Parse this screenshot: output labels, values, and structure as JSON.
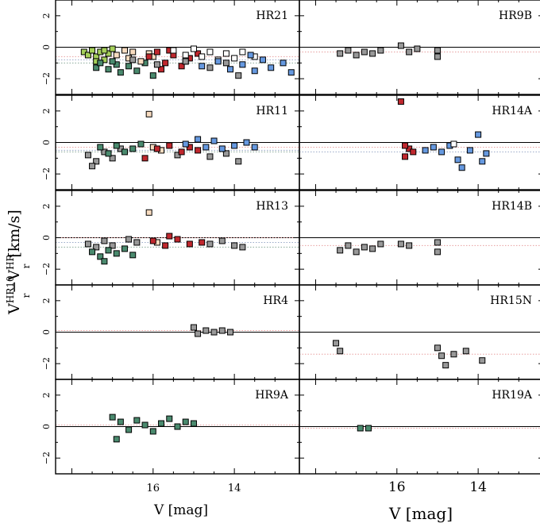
{
  "figure": {
    "ylabel": "V_r^HR10 − V_r^HR",
    "ylabel_main": "V",
    "ylabel_sup": "HR10",
    "ylabel_sub": "r",
    "ylabel_minus": "−V",
    "ylabel_sup2": "HR",
    "ylabel_sub2": "r",
    "ylabel_unit": "[km/s]",
    "xlabel": "V [mag]",
    "x_ticks": [
      "16",
      "14"
    ],
    "y_ticks": [
      "2",
      "0",
      "−2"
    ]
  },
  "chart_data": [
    {
      "type": "scatter",
      "panel": "HR21",
      "xlim": [
        18.4,
        12.4
      ],
      "ylim": [
        -3,
        3
      ],
      "ref_lines": [
        -0.6,
        -0.8,
        -1.0
      ],
      "series": [
        {
          "color": "#a6d05a",
          "points": [
            [
              17.7,
              -0.3
            ],
            [
              17.6,
              -0.5
            ],
            [
              17.5,
              -0.2
            ],
            [
              17.4,
              -0.6
            ],
            [
              17.3,
              -0.3
            ],
            [
              17.2,
              -0.8
            ],
            [
              17.1,
              -0.4
            ],
            [
              17.0,
              -0.1
            ],
            [
              17.2,
              -0.2
            ],
            [
              17.4,
              -0.9
            ]
          ]
        },
        {
          "color": "#4a8a6e",
          "points": [
            [
              17.4,
              -1.3
            ],
            [
              17.3,
              -1.0
            ],
            [
              17.1,
              -1.4
            ],
            [
              16.9,
              -1.1
            ],
            [
              16.8,
              -1.6
            ],
            [
              16.6,
              -1.2
            ],
            [
              16.4,
              -1.5
            ],
            [
              16.2,
              -1.0
            ],
            [
              16.0,
              -1.8
            ],
            [
              17.0,
              -0.9
            ]
          ]
        },
        {
          "color": "#f8dcc0",
          "points": [
            [
              16.9,
              -0.5
            ],
            [
              16.7,
              -0.2
            ],
            [
              16.6,
              -0.7
            ],
            [
              16.5,
              -0.3
            ],
            [
              16.3,
              -0.9
            ],
            [
              16.1,
              -0.4
            ],
            [
              16.0,
              -0.6
            ]
          ]
        },
        {
          "color": "#c0282e",
          "points": [
            [
              16.1,
              -0.6
            ],
            [
              15.9,
              -0.3
            ],
            [
              15.7,
              -1.0
            ],
            [
              15.5,
              -0.5
            ],
            [
              15.3,
              -1.2
            ],
            [
              15.1,
              -0.7
            ],
            [
              14.9,
              -0.4
            ],
            [
              15.8,
              -1.4
            ],
            [
              15.6,
              -0.2
            ],
            [
              15.2,
              -0.9
            ]
          ]
        },
        {
          "color": "#ffffff",
          "points": [
            [
              15.5,
              -0.2
            ],
            [
              15.2,
              -0.5
            ],
            [
              15.0,
              -0.1
            ],
            [
              14.8,
              -0.6
            ],
            [
              14.6,
              -0.3
            ],
            [
              14.4,
              -0.8
            ],
            [
              14.2,
              -0.4
            ],
            [
              14.0,
              -0.7
            ],
            [
              13.8,
              -0.3
            ],
            [
              13.5,
              -0.6
            ]
          ]
        },
        {
          "color": "#6699e0",
          "points": [
            [
              14.8,
              -1.2
            ],
            [
              14.4,
              -0.9
            ],
            [
              14.1,
              -1.4
            ],
            [
              13.8,
              -1.1
            ],
            [
              13.5,
              -1.5
            ],
            [
              13.3,
              -0.8
            ],
            [
              13.1,
              -1.3
            ],
            [
              12.8,
              -1.0
            ],
            [
              12.6,
              -1.6
            ],
            [
              13.6,
              -0.5
            ]
          ]
        },
        {
          "color": "#999999",
          "points": [
            [
              16.5,
              -0.8
            ],
            [
              15.9,
              -1.1
            ],
            [
              15.2,
              -0.9
            ],
            [
              14.6,
              -1.3
            ],
            [
              14.2,
              -1.0
            ],
            [
              13.9,
              -1.8
            ]
          ]
        }
      ]
    },
    {
      "type": "scatter",
      "panel": "HR9B",
      "xlim": [
        18.4,
        12.4
      ],
      "ylim": [
        -3,
        3
      ],
      "ref_lines": [
        -0.3
      ],
      "series": [
        {
          "color": "#999999",
          "points": [
            [
              17.4,
              -0.4
            ],
            [
              17.2,
              -0.2
            ],
            [
              17.0,
              -0.5
            ],
            [
              16.8,
              -0.3
            ],
            [
              16.6,
              -0.4
            ],
            [
              16.4,
              -0.2
            ],
            [
              15.9,
              0.1
            ],
            [
              15.7,
              -0.3
            ],
            [
              15.5,
              -0.1
            ],
            [
              15.0,
              -0.2
            ],
            [
              15.0,
              -0.6
            ]
          ]
        }
      ]
    },
    {
      "type": "scatter",
      "panel": "HR11",
      "xlim": [
        18.4,
        12.4
      ],
      "ylim": [
        -3,
        3
      ],
      "ref_lines": [
        -0.3,
        -0.5,
        -0.6
      ],
      "series": [
        {
          "color": "#999999",
          "points": [
            [
              17.6,
              -0.8
            ],
            [
              17.4,
              -1.2
            ],
            [
              17.2,
              -0.6
            ],
            [
              17.0,
              -1.0
            ],
            [
              16.8,
              -0.4
            ],
            [
              15.4,
              -0.8
            ],
            [
              14.6,
              -0.9
            ],
            [
              14.2,
              -0.7
            ],
            [
              13.9,
              -1.2
            ],
            [
              17.5,
              -1.5
            ]
          ]
        },
        {
          "color": "#4a8a6e",
          "points": [
            [
              17.3,
              -0.3
            ],
            [
              17.1,
              -0.7
            ],
            [
              16.9,
              -0.2
            ],
            [
              16.7,
              -0.6
            ],
            [
              16.5,
              -0.4
            ],
            [
              16.3,
              -0.1
            ]
          ]
        },
        {
          "color": "#f8dcc0",
          "points": [
            [
              16.1,
              1.8
            ],
            [
              16.0,
              -0.3
            ],
            [
              15.8,
              -0.5
            ]
          ]
        },
        {
          "color": "#c0282e",
          "points": [
            [
              15.9,
              -0.4
            ],
            [
              15.6,
              -0.2
            ],
            [
              15.3,
              -0.6
            ],
            [
              15.1,
              -0.3
            ],
            [
              14.9,
              -0.5
            ],
            [
              16.2,
              -1.0
            ]
          ]
        },
        {
          "color": "#6699e0",
          "points": [
            [
              15.2,
              -0.1
            ],
            [
              14.9,
              0.2
            ],
            [
              14.7,
              -0.3
            ],
            [
              14.5,
              0.1
            ],
            [
              14.3,
              -0.4
            ],
            [
              14.0,
              -0.2
            ],
            [
              13.7,
              0.0
            ],
            [
              13.5,
              -0.3
            ]
          ]
        }
      ]
    },
    {
      "type": "scatter",
      "panel": "HR14A",
      "xlim": [
        18.4,
        12.4
      ],
      "ylim": [
        -3,
        3
      ],
      "ref_lines": [
        -0.3,
        -0.6
      ],
      "series": [
        {
          "color": "#c0282e",
          "points": [
            [
              15.9,
              2.6
            ],
            [
              15.8,
              -0.9
            ],
            [
              15.7,
              -0.4
            ],
            [
              15.6,
              -0.6
            ],
            [
              15.8,
              -0.2
            ]
          ]
        },
        {
          "color": "#6699e0",
          "points": [
            [
              15.3,
              -0.5
            ],
            [
              15.1,
              -0.3
            ],
            [
              14.9,
              -0.6
            ],
            [
              14.7,
              -0.2
            ],
            [
              14.5,
              -1.1
            ],
            [
              14.2,
              -0.5
            ],
            [
              14.0,
              0.5
            ],
            [
              13.9,
              -1.2
            ],
            [
              13.8,
              -0.7
            ],
            [
              14.4,
              -1.6
            ]
          ]
        },
        {
          "color": "#ffffff",
          "points": [
            [
              14.6,
              -0.1
            ]
          ]
        }
      ]
    },
    {
      "type": "scatter",
      "panel": "HR13",
      "xlim": [
        18.4,
        12.4
      ],
      "ylim": [
        -3,
        3
      ],
      "ref_lines": [
        0.0,
        -0.3,
        -0.6
      ],
      "series": [
        {
          "color": "#999999",
          "points": [
            [
              17.6,
              -0.4
            ],
            [
              17.4,
              -0.6
            ],
            [
              17.2,
              -0.2
            ],
            [
              17.0,
              -0.5
            ],
            [
              16.6,
              -0.1
            ],
            [
              16.4,
              -0.3
            ],
            [
              14.6,
              -0.4
            ],
            [
              14.3,
              -0.2
            ],
            [
              14.0,
              -0.5
            ],
            [
              13.8,
              -0.6
            ]
          ]
        },
        {
          "color": "#4a8a6e",
          "points": [
            [
              17.5,
              -0.9
            ],
            [
              17.3,
              -1.2
            ],
            [
              17.1,
              -0.8
            ],
            [
              16.9,
              -1.0
            ],
            [
              16.7,
              -0.7
            ],
            [
              16.5,
              -1.1
            ],
            [
              17.2,
              -1.5
            ]
          ]
        },
        {
          "color": "#f8dcc0",
          "points": [
            [
              16.1,
              1.6
            ],
            [
              15.9,
              -0.3
            ]
          ]
        },
        {
          "color": "#c0282e",
          "points": [
            [
              16.0,
              -0.2
            ],
            [
              15.7,
              -0.5
            ],
            [
              15.4,
              -0.1
            ],
            [
              15.1,
              -0.4
            ],
            [
              14.8,
              -0.3
            ],
            [
              15.6,
              0.1
            ]
          ]
        }
      ]
    },
    {
      "type": "scatter",
      "panel": "HR14B",
      "xlim": [
        18.4,
        12.4
      ],
      "ylim": [
        -3,
        3
      ],
      "ref_lines": [
        -0.5
      ],
      "series": [
        {
          "color": "#999999",
          "points": [
            [
              17.4,
              -0.8
            ],
            [
              17.2,
              -0.5
            ],
            [
              17.0,
              -0.9
            ],
            [
              16.8,
              -0.6
            ],
            [
              16.6,
              -0.7
            ],
            [
              16.4,
              -0.4
            ],
            [
              15.9,
              -0.4
            ],
            [
              15.7,
              -0.5
            ],
            [
              15.0,
              -0.3
            ],
            [
              15.0,
              -0.9
            ]
          ]
        }
      ]
    },
    {
      "type": "scatter",
      "panel": "HR4",
      "xlim": [
        18.4,
        12.4
      ],
      "ylim": [
        -3,
        3
      ],
      "ref_lines": [
        0.1
      ],
      "series": [
        {
          "color": "#999999",
          "points": [
            [
              15.0,
              0.3
            ],
            [
              14.9,
              -0.1
            ],
            [
              14.7,
              0.1
            ],
            [
              14.5,
              0.0
            ],
            [
              14.3,
              0.1
            ],
            [
              14.1,
              0.0
            ]
          ]
        }
      ]
    },
    {
      "type": "scatter",
      "panel": "HR15N",
      "xlim": [
        18.4,
        12.4
      ],
      "ylim": [
        -3,
        3
      ],
      "ref_lines": [
        -1.4
      ],
      "series": [
        {
          "color": "#999999",
          "points": [
            [
              17.5,
              -0.7
            ],
            [
              17.4,
              -1.2
            ],
            [
              15.0,
              -1.0
            ],
            [
              14.9,
              -1.5
            ],
            [
              14.8,
              -2.1
            ],
            [
              14.6,
              -1.4
            ],
            [
              14.3,
              -1.2
            ],
            [
              13.9,
              -1.8
            ]
          ]
        }
      ]
    },
    {
      "type": "scatter",
      "panel": "HR9A",
      "xlim": [
        18.4,
        12.4
      ],
      "ylim": [
        -3,
        3
      ],
      "ref_lines": [
        0.1
      ],
      "series": [
        {
          "color": "#4a8a6e",
          "points": [
            [
              17.0,
              0.6
            ],
            [
              16.8,
              0.3
            ],
            [
              16.6,
              -0.2
            ],
            [
              16.4,
              0.4
            ],
            [
              16.2,
              0.1
            ],
            [
              16.0,
              -0.3
            ],
            [
              15.8,
              0.2
            ],
            [
              15.6,
              0.5
            ],
            [
              15.4,
              0.0
            ],
            [
              15.2,
              0.3
            ],
            [
              16.9,
              -0.8
            ],
            [
              15.0,
              0.2
            ]
          ]
        }
      ]
    },
    {
      "type": "scatter",
      "panel": "HR19A",
      "xlim": [
        18.4,
        12.4
      ],
      "ylim": [
        -3,
        3
      ],
      "ref_lines": [
        -0.1
      ],
      "series": [
        {
          "color": "#4a8a6e",
          "points": [
            [
              16.9,
              -0.1
            ],
            [
              16.7,
              -0.1
            ]
          ]
        }
      ]
    }
  ]
}
